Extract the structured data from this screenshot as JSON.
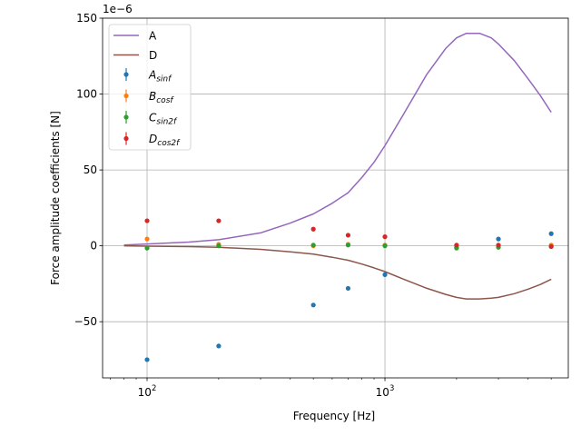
{
  "chart_data": {
    "type": "line",
    "xscale": "log",
    "xlabel": "Frequency [Hz]",
    "ylabel": "Force amplitude coefficients [N]",
    "scale_label": "1e−6",
    "xlim": [
      65,
      5900
    ],
    "ylim": [
      -87,
      150
    ],
    "x_ticks": [
      {
        "value": 100,
        "base": "10",
        "exp": "2"
      },
      {
        "value": 1000,
        "base": "10",
        "exp": "3"
      }
    ],
    "y_ticks": [
      {
        "value": -50,
        "label": "−50"
      },
      {
        "value": 0,
        "label": "0"
      },
      {
        "value": 50,
        "label": "50"
      },
      {
        "value": 100,
        "label": "100"
      },
      {
        "value": 150,
        "label": "150"
      }
    ],
    "grid": true,
    "legend_position": "top-left",
    "lines": [
      {
        "name": "A",
        "color": "#9467bd",
        "x": [
          80,
          100,
          150,
          200,
          300,
          400,
          500,
          600,
          700,
          800,
          900,
          1000,
          1200,
          1500,
          1800,
          2000,
          2200,
          2500,
          2800,
          3000,
          3500,
          4000,
          4500,
          5000
        ],
        "y": [
          0.5,
          1.2,
          2.5,
          4,
          8.5,
          15,
          21,
          28,
          35,
          45,
          55,
          66,
          87,
          113,
          130,
          137,
          140,
          140,
          137,
          133,
          122,
          110,
          99,
          88
        ]
      },
      {
        "name": "D",
        "color": "#8c564b",
        "x": [
          80,
          100,
          150,
          200,
          300,
          400,
          500,
          600,
          700,
          800,
          900,
          1000,
          1200,
          1500,
          1800,
          2000,
          2200,
          2500,
          2800,
          3000,
          3500,
          4000,
          4500,
          5000
        ],
        "y": [
          0,
          -0.2,
          -0.5,
          -1,
          -2.3,
          -4,
          -5.5,
          -7.5,
          -9.5,
          -12,
          -14.5,
          -17,
          -22,
          -28,
          -32,
          -34,
          -35,
          -35,
          -34.5,
          -34,
          -31.5,
          -28.5,
          -25.5,
          -22
        ]
      }
    ],
    "series": [
      {
        "name": "A_sinf",
        "base": "A",
        "sub": "sinf",
        "color": "#1f77b4",
        "x": [
          100,
          200,
          500,
          700,
          1000,
          2000,
          3000,
          5000
        ],
        "y": [
          -75,
          -66,
          -39,
          -28,
          -19,
          -1,
          4.5,
          8
        ]
      },
      {
        "name": "B_cosf",
        "base": "B",
        "sub": "cosf",
        "color": "#ff7f0e",
        "x": [
          100,
          200,
          500,
          700,
          1000,
          2000,
          3000,
          5000
        ],
        "y": [
          4.5,
          1,
          0,
          1,
          0.5,
          -0.5,
          0,
          0.5
        ]
      },
      {
        "name": "C_sin2f",
        "base": "C",
        "sub": "sin2f",
        "color": "#2ca02c",
        "x": [
          100,
          200,
          500,
          700,
          1000,
          2000,
          3000,
          5000
        ],
        "y": [
          -1.5,
          0,
          0.5,
          0.5,
          0,
          -1.5,
          -1,
          -0.5
        ]
      },
      {
        "name": "D_cos2f",
        "base": "D",
        "sub": "cos2f",
        "color": "#d62728",
        "x": [
          100,
          200,
          500,
          700,
          1000,
          2000,
          3000,
          5000
        ],
        "y": [
          16.5,
          16.5,
          11,
          7,
          6,
          0.5,
          0.5,
          -0.5
        ]
      }
    ]
  }
}
